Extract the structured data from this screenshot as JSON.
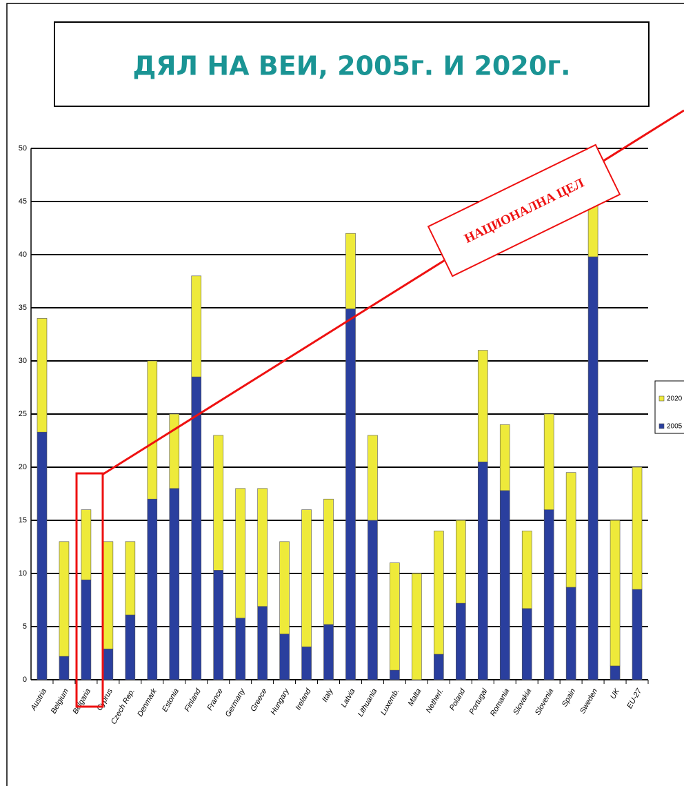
{
  "chart_data": {
    "type": "stacked_bar",
    "title": "ДЯЛ НА ВЕИ, 2005г. И 2020г.",
    "annotation": "НАЦИОНАЛНА ЦЕЛ",
    "categories": [
      "Austria",
      "Belgium",
      "Bulgaria",
      "Cyprus",
      "Czech Rep.",
      "Denmark",
      "Estonia",
      "Finland",
      "France",
      "Germany",
      "Greece",
      "Hungary",
      "Ireland",
      "Italy",
      "Latvia",
      "Lithuania",
      "Luxemb.",
      "Malta",
      "Netherl.",
      "Poland",
      "Portugal",
      "Romania",
      "Slovakia",
      "Slovenia",
      "Spain",
      "Sweden",
      "UK",
      "EU-27"
    ],
    "series": [
      {
        "name": "2005",
        "color": "#2a3f9e",
        "values": [
          23.3,
          2.2,
          9.4,
          2.9,
          6.1,
          17,
          18,
          28.5,
          10.3,
          5.8,
          6.9,
          4.3,
          3.1,
          5.2,
          34.9,
          15,
          0.9,
          0,
          2.4,
          7.2,
          20.5,
          17.8,
          6.7,
          16,
          8.7,
          39.8,
          1.3,
          8.5
        ]
      },
      {
        "name": "2020",
        "color": "#eeea3a",
        "values": [
          10.7,
          10.8,
          6.6,
          10.1,
          6.9,
          13,
          7,
          9.5,
          12.7,
          12.2,
          11.1,
          8.7,
          12.9,
          11.8,
          7.1,
          8,
          10.1,
          10,
          11.6,
          7.8,
          10.5,
          6.2,
          7.3,
          9,
          10.8,
          9.2,
          13.7,
          11.5
        ]
      }
    ],
    "ylim": [
      0,
      50
    ],
    "yticks": [
      0,
      5,
      10,
      15,
      20,
      25,
      30,
      35,
      40,
      45,
      50
    ],
    "grid": true,
    "legend": "right"
  }
}
